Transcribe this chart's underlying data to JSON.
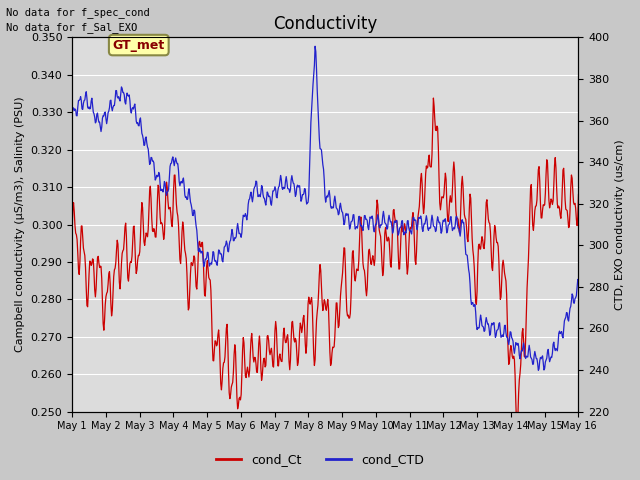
{
  "title": "Conductivity",
  "ylabel_left": "Campbell conductivity (µS/m3), Salinity (PSU)",
  "ylabel_right": "CTD, EXO conductivity (us/cm)",
  "ylim_left": [
    0.25,
    0.35
  ],
  "ylim_right": [
    220,
    400
  ],
  "yticks_left": [
    0.25,
    0.26,
    0.27,
    0.28,
    0.29,
    0.3,
    0.31,
    0.32,
    0.33,
    0.34,
    0.35
  ],
  "yticks_right": [
    220,
    240,
    260,
    280,
    300,
    320,
    340,
    360,
    380,
    400
  ],
  "xlabel_ticks": [
    "May 1",
    "May 2",
    "May 3",
    "May 4",
    "May 5",
    "May 6",
    "May 7",
    "May 8",
    "May 9",
    "May 10",
    "May 11",
    "May 12",
    "May 13",
    "May 14",
    "May 15",
    "May 16"
  ],
  "top_left_text": [
    "No data for f_spec_cond",
    "No data for f_Sal_EXO"
  ],
  "box_label": "GT_met",
  "legend_entries": [
    "cond_Ct",
    "cond_CTD"
  ],
  "legend_colors": [
    "#cc0000",
    "#2222cc"
  ],
  "color_red": "#cc0000",
  "color_blue": "#2222cc",
  "fig_bg_color": "#c8c8c8",
  "plot_bg_color": "#dcdcdc",
  "grid_color": "#ffffff",
  "title_fontsize": 12,
  "label_fontsize": 8,
  "tick_fontsize": 8,
  "box_facecolor": "#ffffaa",
  "box_edgecolor": "#888844",
  "box_text_color": "#880000"
}
